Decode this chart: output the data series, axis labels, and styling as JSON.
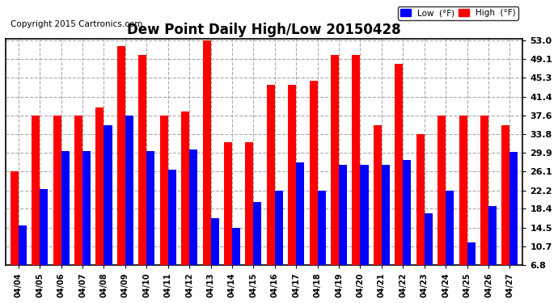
{
  "title": "Dew Point Daily High/Low 20150428",
  "copyright": "Copyright 2015 Cartronics.com",
  "legend_low": "Low  (°F)",
  "legend_high": "High  (°F)",
  "dates": [
    "04/04",
    "04/05",
    "04/06",
    "04/07",
    "04/08",
    "04/09",
    "04/10",
    "04/11",
    "04/12",
    "04/13",
    "04/14",
    "04/15",
    "04/16",
    "04/17",
    "04/18",
    "04/19",
    "04/20",
    "04/21",
    "04/22",
    "04/23",
    "04/24",
    "04/25",
    "04/26",
    "04/27"
  ],
  "high": [
    26.1,
    37.6,
    37.6,
    37.6,
    39.2,
    51.8,
    50.0,
    37.6,
    38.3,
    53.0,
    32.0,
    32.0,
    43.9,
    43.9,
    44.6,
    50.0,
    50.0,
    35.6,
    48.2,
    33.8,
    37.6,
    37.6,
    37.6,
    35.6
  ],
  "low": [
    15.0,
    22.5,
    30.2,
    30.2,
    35.6,
    37.6,
    30.2,
    26.5,
    30.5,
    16.5,
    14.5,
    19.8,
    22.2,
    28.0,
    22.2,
    27.5,
    27.5,
    27.5,
    28.4,
    17.5,
    22.2,
    11.5,
    19.0,
    30.0
  ],
  "yticks": [
    6.8,
    10.7,
    14.5,
    18.4,
    22.2,
    26.1,
    29.9,
    33.8,
    37.6,
    41.4,
    45.3,
    49.1,
    53.0
  ],
  "ymin": 6.8,
  "ymax": 53.0,
  "bar_width": 0.38,
  "high_color": "#FF0000",
  "low_color": "#0000FF",
  "bg_color": "#FFFFFF",
  "grid_color": "#AAAAAA",
  "title_fontsize": 12,
  "copyright_fontsize": 7.5
}
